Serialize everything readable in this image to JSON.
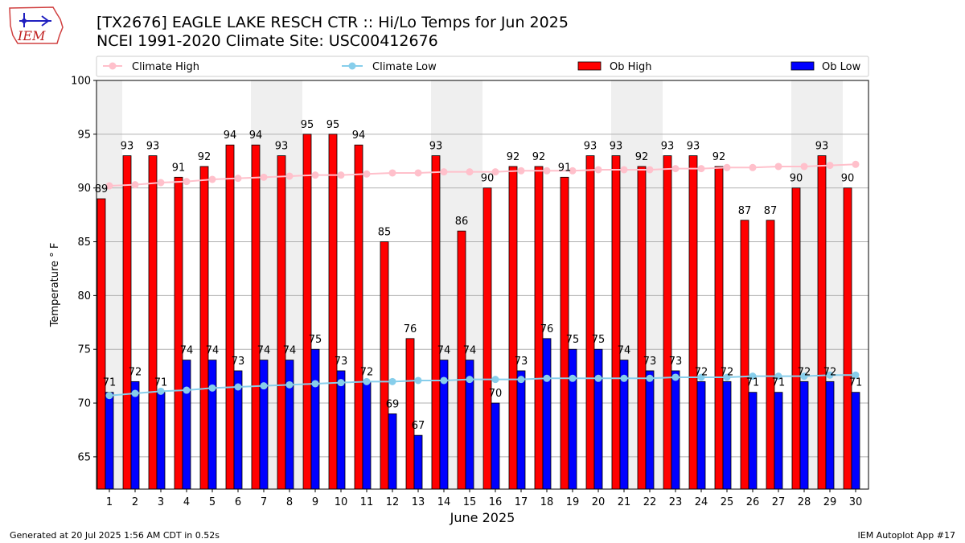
{
  "header": {
    "title_line1": "[TX2676] EAGLE LAKE RESCH CTR :: Hi/Lo Temps for Jun 2025",
    "title_line2": "NCEI 1991-2020 Climate Site: USC00412676",
    "logo_text": "IEM"
  },
  "footer": {
    "generated": "Generated at 20 Jul 2025 1:56 AM CDT in 0.52s",
    "app": "IEM Autoplot App #17"
  },
  "colors": {
    "ob_high": "#ff0000",
    "ob_low": "#0000ff",
    "climate_high": "#ffc0cb",
    "climate_low": "#87ceeb",
    "weekend_band": "#efefef",
    "grid": "#b0b0b0"
  },
  "chart_data": {
    "type": "bar",
    "xlabel": "June 2025",
    "ylabel": "Temperature ° F",
    "ylim": [
      62,
      100
    ],
    "yticks": [
      65,
      70,
      75,
      80,
      85,
      90,
      95,
      100
    ],
    "grid": true,
    "legend_position": "top",
    "categories": [
      "1",
      "2",
      "3",
      "4",
      "5",
      "6",
      "7",
      "8",
      "9",
      "10",
      "11",
      "12",
      "13",
      "14",
      "15",
      "16",
      "17",
      "18",
      "19",
      "20",
      "21",
      "22",
      "23",
      "24",
      "25",
      "26",
      "27",
      "28",
      "29",
      "30"
    ],
    "weekend_days": [
      1,
      7,
      8,
      14,
      15,
      21,
      22,
      28,
      29
    ],
    "series": [
      {
        "name": "Climate High",
        "kind": "line",
        "values": [
          90.2,
          90.3,
          90.5,
          90.6,
          90.8,
          90.9,
          91.0,
          91.1,
          91.2,
          91.2,
          91.3,
          91.4,
          91.4,
          91.5,
          91.5,
          91.5,
          91.6,
          91.6,
          91.6,
          91.7,
          91.7,
          91.7,
          91.8,
          91.8,
          91.9,
          91.9,
          92.0,
          92.0,
          92.1,
          92.2
        ]
      },
      {
        "name": "Climate Low",
        "kind": "line",
        "values": [
          70.7,
          70.9,
          71.1,
          71.2,
          71.4,
          71.5,
          71.6,
          71.7,
          71.8,
          71.9,
          72.0,
          72.0,
          72.1,
          72.1,
          72.2,
          72.2,
          72.2,
          72.3,
          72.3,
          72.3,
          72.3,
          72.3,
          72.4,
          72.4,
          72.4,
          72.5,
          72.5,
          72.5,
          72.6,
          72.6
        ]
      },
      {
        "name": "Ob High",
        "kind": "bar",
        "values": [
          89,
          93,
          93,
          91,
          92,
          94,
          94,
          93,
          95,
          95,
          94,
          85,
          76,
          93,
          86,
          90,
          92,
          92,
          91,
          93,
          93,
          92,
          93,
          93,
          92,
          87,
          87,
          90,
          93,
          90
        ]
      },
      {
        "name": "Ob Low",
        "kind": "bar",
        "values": [
          71,
          72,
          71,
          74,
          74,
          73,
          74,
          74,
          75,
          73,
          72,
          69,
          67,
          74,
          74,
          70,
          73,
          76,
          75,
          75,
          74,
          73,
          73,
          72,
          72,
          71,
          71,
          72,
          72,
          71
        ]
      }
    ]
  }
}
